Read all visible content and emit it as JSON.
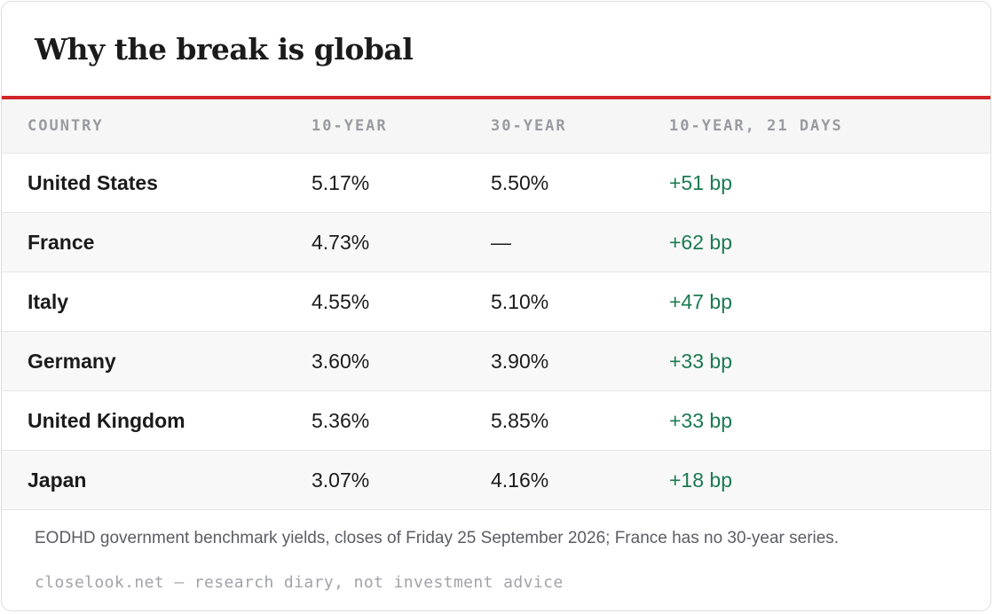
{
  "title": "Why the break is global",
  "accent_color": "#d1252b",
  "positive_color": "#1b7a52",
  "chart_data": {
    "type": "table",
    "columns": [
      "COUNTRY",
      "10-YEAR",
      "30-YEAR",
      "10-YEAR, 21 DAYS"
    ],
    "rows": [
      {
        "country": "United States",
        "y10": "5.17%",
        "y30": "5.50%",
        "change": "+51 bp"
      },
      {
        "country": "France",
        "y10": "4.73%",
        "y30": "—",
        "change": "+62 bp"
      },
      {
        "country": "Italy",
        "y10": "4.55%",
        "y30": "5.10%",
        "change": "+47 bp"
      },
      {
        "country": "Germany",
        "y10": "3.60%",
        "y30": "3.90%",
        "change": "+33 bp"
      },
      {
        "country": "United Kingdom",
        "y10": "5.36%",
        "y30": "5.85%",
        "change": "+33 bp"
      },
      {
        "country": "Japan",
        "y10": "3.07%",
        "y30": "4.16%",
        "change": "+18 bp"
      }
    ]
  },
  "footnote": "EODHD government benchmark yields, closes of Friday 25 September 2026; France has no 30-year series.",
  "credit": "closelook.net — research diary, not investment advice"
}
